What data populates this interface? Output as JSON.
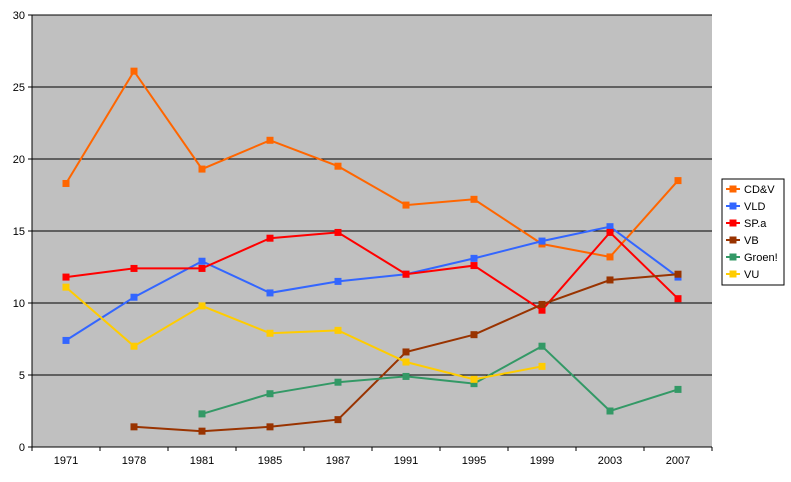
{
  "chart_data": {
    "type": "line",
    "x": [
      "1971",
      "1978",
      "1981",
      "1985",
      "1987",
      "1991",
      "1995",
      "1999",
      "2003",
      "2007"
    ],
    "ylim": [
      0,
      30
    ],
    "yticks": [
      "0",
      "5",
      "10",
      "15",
      "20",
      "25",
      "30"
    ],
    "grid": "horizontal",
    "legend_position": "right",
    "series": [
      {
        "name": "CD&V",
        "color": "#FF6600",
        "values": [
          18.3,
          26.1,
          19.3,
          21.3,
          19.5,
          16.8,
          17.2,
          14.1,
          13.2,
          18.5
        ]
      },
      {
        "name": "VLD",
        "color": "#3366FF",
        "values": [
          7.4,
          10.4,
          12.9,
          10.7,
          11.5,
          12.0,
          13.1,
          14.3,
          15.3,
          11.8
        ]
      },
      {
        "name": "SP.a",
        "color": "#FF0000",
        "values": [
          11.8,
          12.4,
          12.4,
          14.5,
          14.9,
          12.0,
          12.6,
          9.5,
          14.9,
          10.3
        ]
      },
      {
        "name": "VB",
        "color": "#993300",
        "values": [
          null,
          1.4,
          1.1,
          1.4,
          1.9,
          6.6,
          7.8,
          9.9,
          11.6,
          12.0
        ]
      },
      {
        "name": "Groen!",
        "color": "#339966",
        "values": [
          null,
          null,
          2.3,
          3.7,
          4.5,
          4.9,
          4.4,
          7.0,
          2.5,
          4.0
        ]
      },
      {
        "name": "VU",
        "color": "#FFCC00",
        "values": [
          11.1,
          7.0,
          9.8,
          7.9,
          8.1,
          5.9,
          4.7,
          5.6,
          null,
          null
        ]
      }
    ]
  }
}
